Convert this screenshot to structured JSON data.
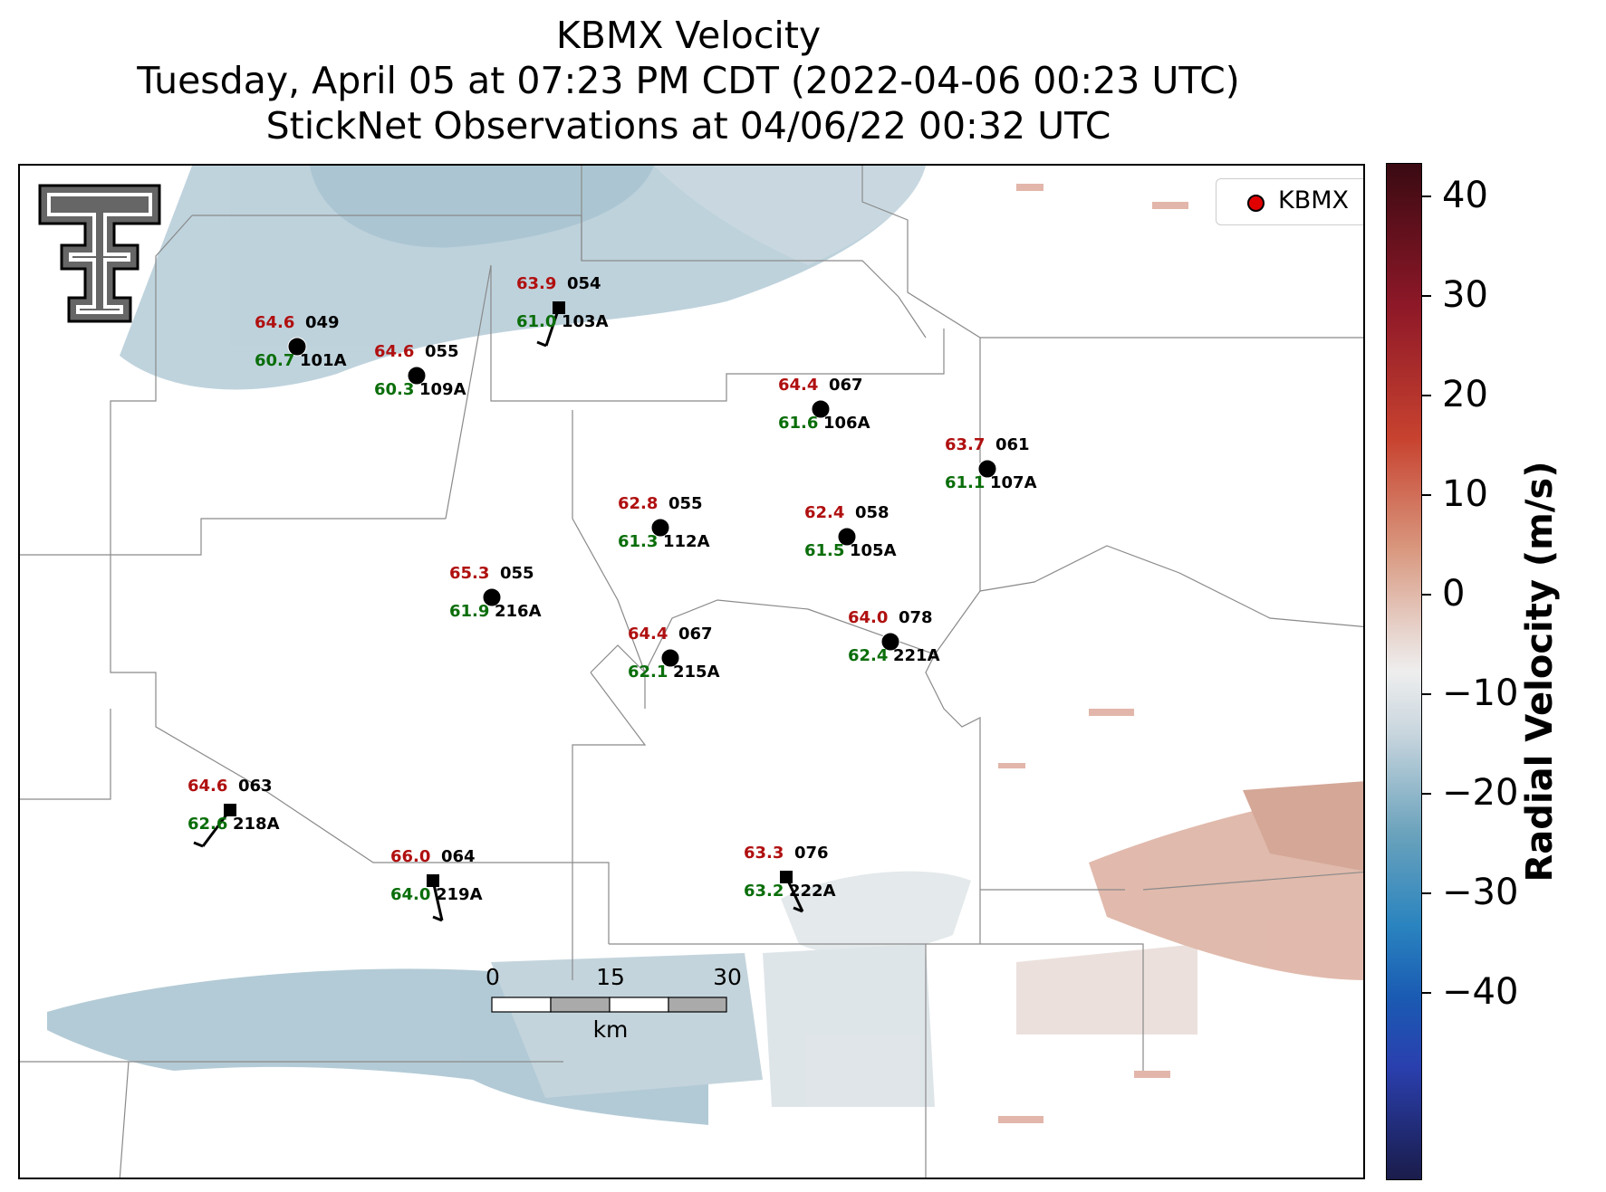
{
  "title": {
    "line1": "KBMX Velocity",
    "line2": "Tuesday, April 05 at 07:23 PM CDT (2022-04-06 00:23 UTC)",
    "line3": "StickNet Observations at 04/06/22 00:32 UTC"
  },
  "legend": {
    "label": "KBMX",
    "marker_color": "#e00000"
  },
  "colorbar": {
    "label": "Radial Velocity (m/s)",
    "ticks": [
      "40",
      "30",
      "20",
      "10",
      "0",
      "−10",
      "−20",
      "−30",
      "−40"
    ]
  },
  "scalebar": {
    "labels": [
      "0",
      "15",
      "30"
    ],
    "unit": "km"
  },
  "logo": {
    "icon": "texas-tech-double-t-logo"
  },
  "stations": [
    {
      "id": "101A",
      "temp": "64.6",
      "dew": "60.7",
      "dir": "049",
      "marker": "circle"
    },
    {
      "id": "109A",
      "temp": "64.6",
      "dew": "60.3",
      "dir": "055",
      "marker": "circle"
    },
    {
      "id": "103A",
      "temp": "63.9",
      "dew": "61.0",
      "dir": "054",
      "marker": "square"
    },
    {
      "id": "106A",
      "temp": "64.4",
      "dew": "61.6",
      "dir": "067",
      "marker": "circle"
    },
    {
      "id": "107A",
      "temp": "63.7",
      "dew": "61.1",
      "dir": "061",
      "marker": "circle"
    },
    {
      "id": "112A",
      "temp": "62.8",
      "dew": "61.3",
      "dir": "055",
      "marker": "circle"
    },
    {
      "id": "105A",
      "temp": "62.4",
      "dew": "61.5",
      "dir": "058",
      "marker": "circle"
    },
    {
      "id": "216A",
      "temp": "65.3",
      "dew": "61.9",
      "dir": "055",
      "marker": "circle"
    },
    {
      "id": "215A",
      "temp": "64.4",
      "dew": "62.1",
      "dir": "067",
      "marker": "circle"
    },
    {
      "id": "221A",
      "temp": "64.0",
      "dew": "62.4",
      "dir": "078",
      "marker": "circle"
    },
    {
      "id": "218A",
      "temp": "64.6",
      "dew": "62.6",
      "dir": "063",
      "marker": "square"
    },
    {
      "id": "219A",
      "temp": "66.0",
      "dew": "64.0",
      "dir": "064",
      "marker": "square"
    },
    {
      "id": "222A",
      "temp": "63.3",
      "dew": "63.2",
      "dir": "076",
      "marker": "square"
    }
  ]
}
